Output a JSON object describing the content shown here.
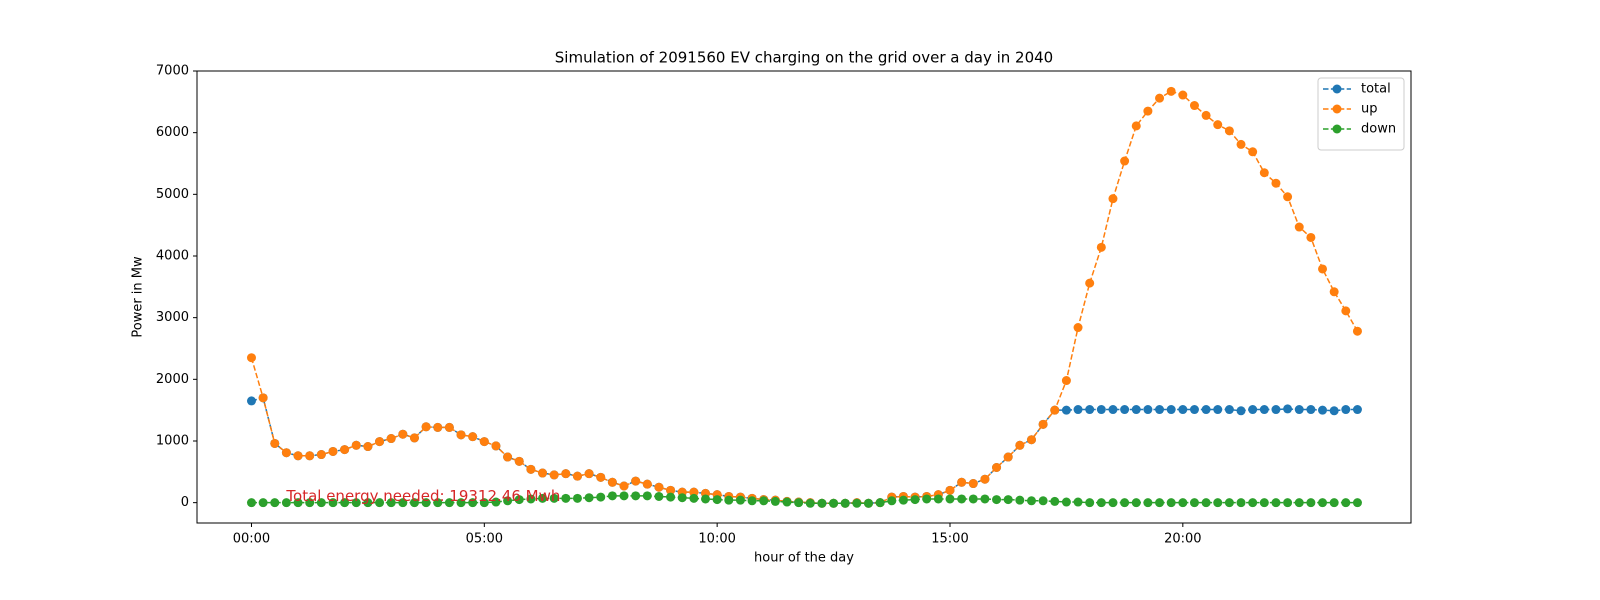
{
  "chart_data": {
    "type": "line",
    "title": "Simulation of 2091560 EV charging on the grid over a day in 2040",
    "x_label": "hour of the day",
    "y_label": "Power in Mw",
    "annotation": {
      "text": "Total energy needed: 19312.46 Mwh",
      "x": 0.75,
      "y": 0,
      "color": "#d62728"
    },
    "x": [
      0,
      0.25,
      0.5,
      0.75,
      1,
      1.25,
      1.5,
      1.75,
      2,
      2.25,
      2.5,
      2.75,
      3,
      3.25,
      3.5,
      3.75,
      4,
      4.25,
      4.5,
      4.75,
      5,
      5.25,
      5.5,
      5.75,
      6,
      6.25,
      6.5,
      6.75,
      7,
      7.25,
      7.5,
      7.75,
      8,
      8.25,
      8.5,
      8.75,
      9,
      9.25,
      9.5,
      9.75,
      10,
      10.25,
      10.5,
      10.75,
      11,
      11.25,
      11.5,
      11.75,
      12,
      12.25,
      12.5,
      12.75,
      13,
      13.25,
      13.5,
      13.75,
      14,
      14.25,
      14.5,
      14.75,
      15,
      15.25,
      15.5,
      15.75,
      16,
      16.25,
      16.5,
      16.75,
      17,
      17.25,
      17.5,
      17.75,
      18,
      18.25,
      18.5,
      18.75,
      19,
      19.25,
      19.5,
      19.75,
      20,
      20.25,
      20.5,
      20.75,
      21,
      21.25,
      21.5,
      21.75,
      22,
      22.25,
      22.5,
      22.75,
      23,
      23.25,
      23.5,
      23.75
    ],
    "series": [
      {
        "name": "total",
        "color": "#1f77b4",
        "values": [
          1650,
          1700,
          960,
          810,
          760,
          760,
          780,
          830,
          860,
          930,
          910,
          990,
          1040,
          1110,
          1050,
          1230,
          1220,
          1220,
          1100,
          1070,
          990,
          920,
          740,
          670,
          540,
          480,
          450,
          470,
          430,
          470,
          410,
          330,
          270,
          350,
          300,
          250,
          200,
          170,
          170,
          150,
          130,
          100,
          90,
          70,
          50,
          40,
          20,
          10,
          0,
          -10,
          -10,
          -10,
          0,
          -10,
          0,
          90,
          100,
          90,
          100,
          130,
          200,
          330,
          310,
          380,
          570,
          740,
          930,
          1020,
          1270,
          1500,
          1500,
          1510,
          1510,
          1510,
          1510,
          1510,
          1510,
          1510,
          1510,
          1510,
          1510,
          1510,
          1510,
          1510,
          1510,
          1490,
          1510,
          1510,
          1510,
          1520,
          1510,
          1510,
          1500,
          1490,
          1510,
          1510
        ]
      },
      {
        "name": "up",
        "color": "#ff7f0e",
        "values": [
          2350,
          1700,
          960,
          810,
          760,
          760,
          780,
          830,
          860,
          930,
          910,
          990,
          1040,
          1110,
          1050,
          1230,
          1220,
          1220,
          1100,
          1070,
          990,
          920,
          740,
          670,
          540,
          480,
          450,
          470,
          430,
          470,
          410,
          330,
          270,
          350,
          300,
          250,
          200,
          170,
          170,
          150,
          130,
          100,
          90,
          70,
          50,
          40,
          20,
          10,
          0,
          -10,
          -10,
          -10,
          0,
          -10,
          0,
          90,
          100,
          90,
          100,
          130,
          200,
          330,
          310,
          380,
          570,
          740,
          930,
          1020,
          1270,
          1500,
          1980,
          2840,
          3560,
          4140,
          4930,
          5540,
          6110,
          6350,
          6560,
          6670,
          6610,
          6440,
          6280,
          6130,
          6030,
          5810,
          5690,
          5350,
          5180,
          4960,
          4470,
          4300,
          3790,
          3420,
          3110,
          2780
        ]
      },
      {
        "name": "down",
        "color": "#2ca02c",
        "values": [
          0,
          0,
          0,
          0,
          0,
          0,
          0,
          0,
          0,
          0,
          0,
          0,
          0,
          0,
          0,
          0,
          0,
          0,
          0,
          0,
          0,
          10,
          30,
          50,
          60,
          70,
          70,
          70,
          70,
          80,
          90,
          110,
          110,
          110,
          110,
          100,
          90,
          80,
          70,
          60,
          50,
          40,
          40,
          30,
          30,
          20,
          10,
          0,
          -10,
          -10,
          -10,
          -10,
          -10,
          -10,
          0,
          30,
          40,
          50,
          60,
          60,
          60,
          60,
          60,
          60,
          50,
          50,
          40,
          30,
          30,
          20,
          10,
          10,
          0,
          0,
          0,
          0,
          0,
          0,
          0,
          0,
          0,
          0,
          0,
          0,
          0,
          0,
          0,
          0,
          0,
          0,
          0,
          0,
          0,
          0,
          0,
          0
        ]
      }
    ],
    "xlim": [
      -1.17,
      24.9
    ],
    "xticks": [
      {
        "value": 0,
        "label": "00:00"
      },
      {
        "value": 5,
        "label": "05:00"
      },
      {
        "value": 10,
        "label": "10:00"
      },
      {
        "value": 15,
        "label": "15:00"
      },
      {
        "value": 20,
        "label": "20:00"
      }
    ],
    "ylim": [
      -330,
      7000
    ],
    "yticks": [
      0,
      1000,
      2000,
      3000,
      4000,
      5000,
      6000,
      7000
    ],
    "grid": false,
    "legend": "upper right",
    "line_style": "dashed",
    "marker": "circle"
  }
}
